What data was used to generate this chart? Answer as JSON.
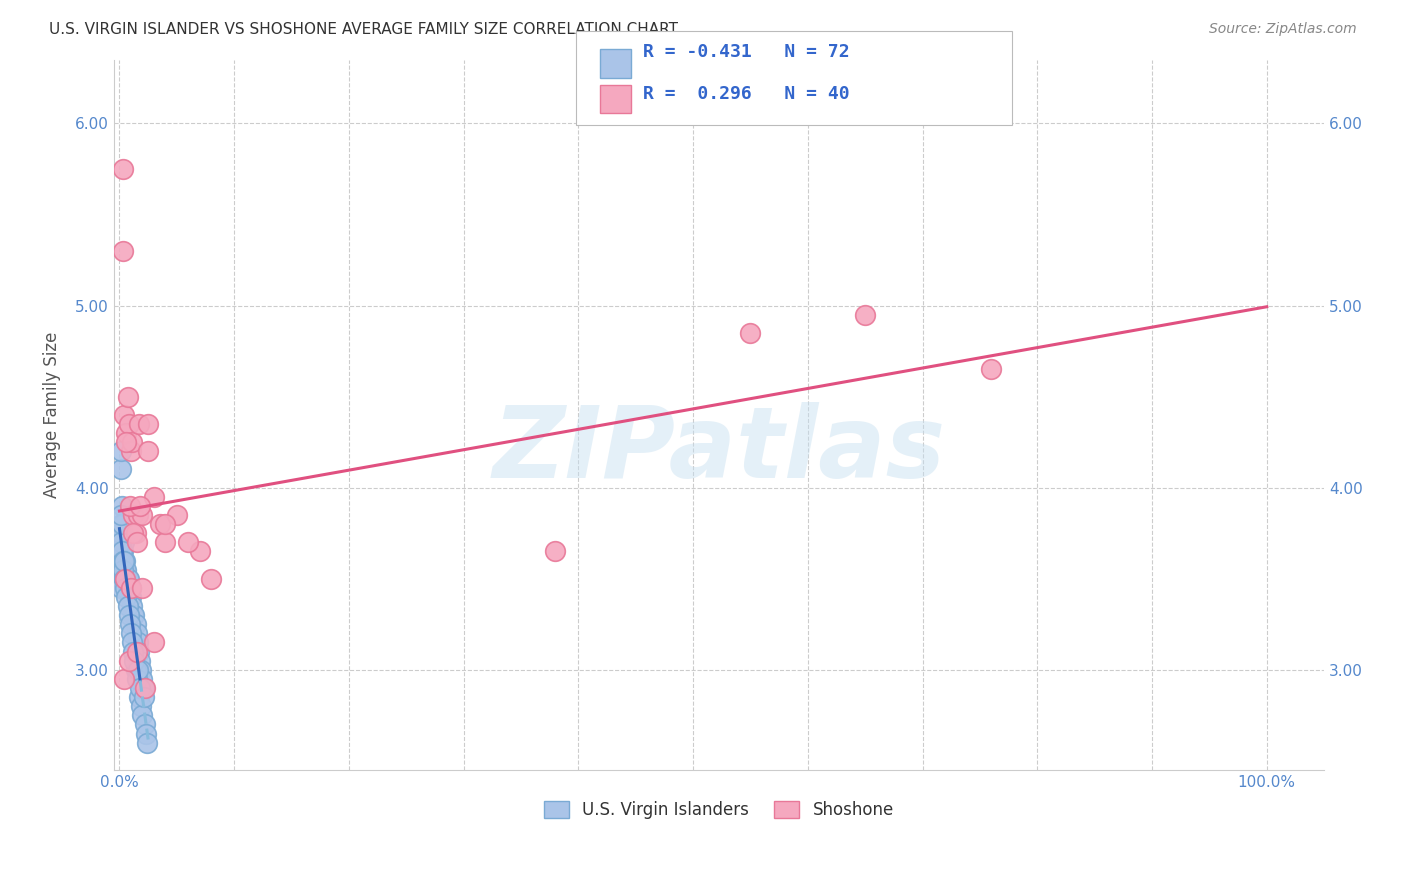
{
  "title": "U.S. VIRGIN ISLANDER VS SHOSHONE AVERAGE FAMILY SIZE CORRELATION CHART",
  "source": "Source: ZipAtlas.com",
  "ylabel": "Average Family Size",
  "y_ticks": [
    3.0,
    4.0,
    5.0,
    6.0
  ],
  "ylim": [
    2.45,
    6.35
  ],
  "xlim": [
    -0.005,
    1.05
  ],
  "legend_label1": "U.S. Virgin Islanders",
  "legend_label2": "Shoshone",
  "blue_color": "#aac4e8",
  "pink_color": "#f5a8bf",
  "blue_edge": "#7aaad4",
  "pink_edge": "#e87898",
  "blue_line_solid_color": "#3366bb",
  "blue_line_dash_color": "#88bbdd",
  "pink_line_color": "#e05080",
  "watermark": "ZIPatlas",
  "blue_x": [
    0.001,
    0.001,
    0.001,
    0.001,
    0.001,
    0.001,
    0.001,
    0.002,
    0.002,
    0.002,
    0.002,
    0.002,
    0.003,
    0.003,
    0.003,
    0.003,
    0.004,
    0.004,
    0.004,
    0.005,
    0.005,
    0.005,
    0.006,
    0.006,
    0.007,
    0.007,
    0.008,
    0.008,
    0.009,
    0.01,
    0.01,
    0.011,
    0.012,
    0.013,
    0.014,
    0.015,
    0.016,
    0.017,
    0.018,
    0.019,
    0.02,
    0.021,
    0.001,
    0.001,
    0.001,
    0.002,
    0.002,
    0.003,
    0.003,
    0.004,
    0.004,
    0.005,
    0.006,
    0.007,
    0.008,
    0.009,
    0.01,
    0.011,
    0.012,
    0.014,
    0.015,
    0.017,
    0.019,
    0.02,
    0.022,
    0.013,
    0.016,
    0.018,
    0.021,
    0.023,
    0.024,
    0.001,
    0.001
  ],
  "blue_y": [
    3.7,
    3.65,
    3.6,
    3.55,
    3.5,
    3.45,
    4.1,
    3.7,
    3.65,
    3.6,
    3.55,
    3.9,
    3.65,
    3.6,
    3.55,
    3.75,
    3.6,
    3.55,
    3.7,
    3.55,
    3.5,
    3.6,
    3.5,
    3.55,
    3.45,
    3.5,
    3.45,
    3.5,
    3.4,
    3.4,
    3.45,
    3.35,
    3.3,
    3.3,
    3.25,
    3.2,
    3.15,
    3.1,
    3.05,
    3.0,
    2.95,
    2.9,
    3.8,
    3.75,
    3.7,
    3.65,
    3.8,
    3.6,
    3.55,
    3.5,
    3.6,
    3.45,
    3.4,
    3.35,
    3.3,
    3.25,
    3.2,
    3.15,
    3.1,
    3.0,
    2.95,
    2.85,
    2.8,
    2.75,
    2.7,
    3.05,
    3.0,
    2.9,
    2.85,
    2.65,
    2.6,
    4.2,
    3.85
  ],
  "pink_x": [
    0.003,
    0.004,
    0.006,
    0.007,
    0.008,
    0.01,
    0.011,
    0.012,
    0.014,
    0.016,
    0.017,
    0.02,
    0.025,
    0.03,
    0.035,
    0.04,
    0.05,
    0.07,
    0.003,
    0.006,
    0.009,
    0.012,
    0.015,
    0.018,
    0.025,
    0.04,
    0.06,
    0.08,
    0.38,
    0.55,
    0.65,
    0.76,
    0.005,
    0.01,
    0.02,
    0.03,
    0.004,
    0.008,
    0.015,
    0.022
  ],
  "pink_y": [
    5.75,
    4.4,
    4.3,
    4.5,
    4.35,
    4.2,
    4.25,
    3.85,
    3.75,
    3.85,
    4.35,
    3.85,
    4.35,
    3.95,
    3.8,
    3.7,
    3.85,
    3.65,
    5.3,
    4.25,
    3.9,
    3.75,
    3.7,
    3.9,
    4.2,
    3.8,
    3.7,
    3.5,
    3.65,
    4.85,
    4.95,
    4.65,
    3.5,
    3.45,
    3.45,
    3.15,
    2.95,
    3.05,
    3.1,
    2.9
  ]
}
